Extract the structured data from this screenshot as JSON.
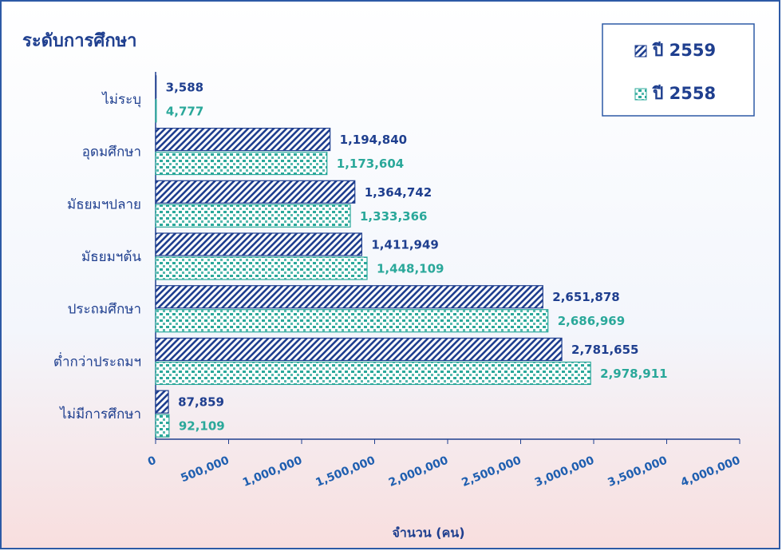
{
  "chart_data": {
    "type": "bar",
    "orientation": "horizontal",
    "title": "ระดับการศึกษา",
    "x_label": "จำนวน (คน)",
    "categories": [
      "ไม่ระบุ",
      "อุดมศึกษา",
      "มัธยมฯปลาย",
      "มัธยมฯต้น",
      "ประถมศึกษา",
      "ต่ำกว่าประถมฯ",
      "ไม่มีการศึกษา"
    ],
    "series": [
      {
        "name": "ปี 2559",
        "color": "#1f3f8f",
        "pattern": "hatch",
        "values": [
          3588,
          1194840,
          1364742,
          1411949,
          2651878,
          2781655,
          87859
        ],
        "value_labels": [
          "3,588",
          "1,194,840",
          "1,364,742",
          "1,411,949",
          "2,651,878",
          "2,781,655",
          "87,859"
        ]
      },
      {
        "name": "ปี 2558",
        "color": "#2aa89a",
        "pattern": "dots",
        "values": [
          4777,
          1173604,
          1333366,
          1448109,
          2686969,
          2978911,
          92109
        ],
        "value_labels": [
          "4,777",
          "1,173,604",
          "1,333,366",
          "1,448,109",
          "2,686,969",
          "2,978,911",
          "92,109"
        ]
      }
    ],
    "xlim": [
      0,
      4000000
    ],
    "xticks": [
      0,
      {
        "value": 500000,
        "label": "500,000"
      },
      {
        "value": 1000000,
        "label": "1,000,000"
      },
      {
        "value": 1500000,
        "label": "1,500,000"
      },
      {
        "value": 2000000,
        "label": "2,000,000"
      },
      {
        "value": 2500000,
        "label": "2,500,000"
      },
      {
        "value": 3000000,
        "label": "3,000,000"
      },
      {
        "value": 3500000,
        "label": "3,500,000"
      },
      {
        "value": 4000000,
        "label": "4,000,000"
      }
    ],
    "legend": "top-right",
    "grid": false
  }
}
